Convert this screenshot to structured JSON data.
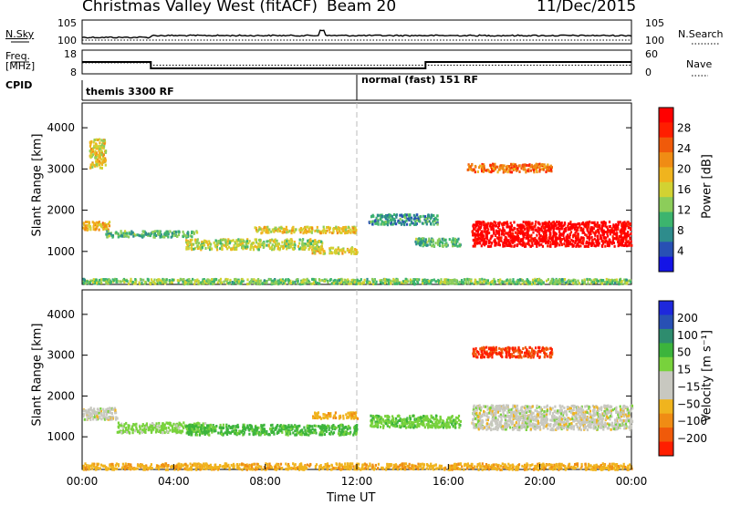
{
  "header": {
    "station": "Christmas Valley West (fitACF)",
    "beam": "Beam 20",
    "date": "11/Dec/2015"
  },
  "side_labels": {
    "nsky": "N.Sky",
    "freq_line1": "Freq.",
    "freq_line2": "[MHz]",
    "cpid": "CPID",
    "nsearch": "N.Search",
    "nave": "Nave"
  },
  "cpid_segments": [
    "themis 3300 RF",
    "normal (fast) 151 RF"
  ],
  "x_axis": {
    "label": "Time UT",
    "ticks": [
      "00:00",
      "04:00",
      "08:00",
      "12:00",
      "16:00",
      "20:00",
      "00:00"
    ],
    "range_hours": [
      0,
      24
    ]
  },
  "colors": {
    "power_scale": [
      "#1414e6",
      "#2850b4",
      "#2e8c8c",
      "#3cb46e",
      "#8ccd5a",
      "#d2d232",
      "#f0b41e",
      "#f08c14",
      "#f05a0a",
      "#ff1e00",
      "#ff0000"
    ],
    "velocity_scale": [
      "#1e28dc",
      "#2850b4",
      "#2e8c6e",
      "#3cb43c",
      "#78d23c",
      "#c8c8c0",
      "#c8c8c0",
      "#f0b41e",
      "#f08c14",
      "#f05a0a",
      "#ff1e00"
    ]
  },
  "chart_data": [
    {
      "type": "line",
      "name": "noise-panel",
      "left_axis_ticks": [
        "10^5",
        "10^0"
      ],
      "right_axis_ticks": [
        "10^5",
        "10^0"
      ],
      "x_range": [
        0,
        24
      ]
    },
    {
      "type": "line",
      "name": "frequency-nave-panel",
      "left_axis_ticks": [
        "18",
        "8"
      ],
      "right_axis_ticks": [
        "60",
        "0"
      ],
      "frequency_mhz": [
        {
          "x": 0,
          "y": 13
        },
        {
          "x": 3,
          "y": 13
        },
        {
          "x": 3,
          "y": 10.3
        },
        {
          "x": 15,
          "y": 10.3
        },
        {
          "x": 15,
          "y": 13
        },
        {
          "x": 24,
          "y": 13
        }
      ],
      "nave": [
        {
          "x": 0,
          "y": 28
        },
        {
          "x": 3,
          "y": 28
        },
        {
          "x": 3,
          "y": 22
        },
        {
          "x": 15,
          "y": 22
        },
        {
          "x": 15,
          "y": 22
        },
        {
          "x": 24,
          "y": 22
        }
      ],
      "x_range": [
        0,
        24
      ]
    },
    {
      "type": "heatmap",
      "name": "power-panel",
      "ylabel": "Slant Range [km]",
      "yticks": [
        1000,
        2000,
        3000,
        4000
      ],
      "ylim": [
        200,
        4600
      ],
      "colorbar_label": "Power [dB]",
      "colorbar_ticks": [
        4,
        8,
        12,
        16,
        20,
        24,
        28
      ],
      "colorbar_range": [
        0,
        30
      ],
      "bands": [
        {
          "t_start": 0.0,
          "t_end": 1.2,
          "r_center": 1650,
          "r_width": 200,
          "value": 18
        },
        {
          "t_start": 1.0,
          "t_end": 5.0,
          "r_center": 1450,
          "r_width": 150,
          "value": 10
        },
        {
          "t_start": 4.5,
          "t_end": 10.5,
          "r_center": 1200,
          "r_width": 250,
          "value": 14
        },
        {
          "t_start": 7.5,
          "t_end": 12.0,
          "r_center": 1550,
          "r_width": 150,
          "value": 16
        },
        {
          "t_start": 10.0,
          "t_end": 12.0,
          "r_center": 1050,
          "r_width": 150,
          "value": 16
        },
        {
          "t_start": 12.5,
          "t_end": 15.5,
          "r_center": 1800,
          "r_width": 250,
          "value": 8
        },
        {
          "t_start": 14.5,
          "t_end": 16.5,
          "r_center": 1250,
          "r_width": 200,
          "value": 10
        },
        {
          "t_start": 17.0,
          "t_end": 24.0,
          "r_center": 1450,
          "r_width": 600,
          "value": 30
        },
        {
          "t_start": 16.8,
          "t_end": 20.5,
          "r_center": 3050,
          "r_width": 200,
          "value": 22
        },
        {
          "t_start": 0.3,
          "t_end": 1.0,
          "r_center": 3400,
          "r_width": 700,
          "value": 16
        },
        {
          "t_start": 0.0,
          "t_end": 24.0,
          "r_center": 300,
          "r_width": 120,
          "value": 12
        }
      ]
    },
    {
      "type": "heatmap",
      "name": "velocity-panel",
      "ylabel": "Slant Range [km]",
      "yticks": [
        1000,
        2000,
        3000,
        4000
      ],
      "ylim": [
        200,
        4600
      ],
      "colorbar_label": "Velocity [m s⁻¹]",
      "colorbar_ticks": [
        200,
        100,
        50,
        15,
        -15,
        -50,
        -100,
        -200
      ],
      "bands": [
        {
          "t_start": 0.0,
          "t_end": 1.5,
          "r_center": 1600,
          "r_width": 300,
          "value": 0
        },
        {
          "t_start": 1.5,
          "t_end": 5.5,
          "r_center": 1250,
          "r_width": 250,
          "value": 30
        },
        {
          "t_start": 4.5,
          "t_end": 12.0,
          "r_center": 1200,
          "r_width": 250,
          "value": 60
        },
        {
          "t_start": 10.0,
          "t_end": 12.0,
          "r_center": 1550,
          "r_width": 150,
          "value": -40
        },
        {
          "t_start": 12.5,
          "t_end": 16.5,
          "r_center": 1400,
          "r_width": 300,
          "value": 40
        },
        {
          "t_start": 17.0,
          "t_end": 24.0,
          "r_center": 1500,
          "r_width": 600,
          "value": 0
        },
        {
          "t_start": 17.0,
          "t_end": 20.5,
          "r_center": 3100,
          "r_width": 250,
          "value": -200
        },
        {
          "t_start": 0.0,
          "t_end": 24.0,
          "r_center": 300,
          "r_width": 150,
          "value": -40
        }
      ]
    }
  ]
}
